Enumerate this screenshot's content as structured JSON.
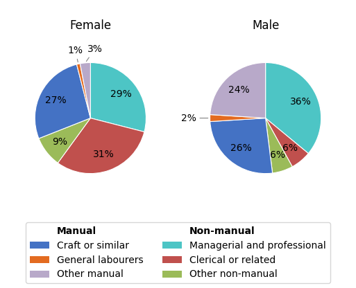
{
  "chart_data": [
    {
      "type": "pie",
      "title": "Female",
      "categories": [
        "Managerial and professional",
        "Clerical or related",
        "Other non-manual",
        "Craft or similar",
        "General labourers",
        "Other manual"
      ],
      "values": [
        29,
        31,
        9,
        27,
        1,
        3
      ],
      "value_labels": [
        "29%",
        "31%",
        "9%",
        "27%",
        "1%",
        "3%"
      ],
      "colors": [
        "#4dc5c5",
        "#c0504d",
        "#9bbb59",
        "#4472c4",
        "#e36b20",
        "#b8a9c9"
      ],
      "data_labels": true,
      "legend": "lower center"
    },
    {
      "type": "pie",
      "title": "Male",
      "categories": [
        "Managerial and professional",
        "Clerical or related",
        "Other non-manual",
        "Craft or similar",
        "General labourers",
        "Other manual"
      ],
      "values": [
        36,
        6,
        6,
        26,
        2,
        24
      ],
      "value_labels": [
        "36%",
        "6%",
        "6%",
        "26%",
        "2%",
        "24%"
      ],
      "colors": [
        "#4dc5c5",
        "#c0504d",
        "#9bbb59",
        "#4472c4",
        "#e36b20",
        "#b8a9c9"
      ],
      "data_labels": true,
      "legend": "lower center"
    }
  ],
  "legend_groups": [
    {
      "name": "Manual",
      "categories": [
        "Craft or similar",
        "General labourers",
        "Other manual"
      ]
    },
    {
      "name": "Non-manual",
      "categories": [
        "Managerial and professional",
        "Clerical or related",
        "Other non-manual"
      ]
    }
  ]
}
